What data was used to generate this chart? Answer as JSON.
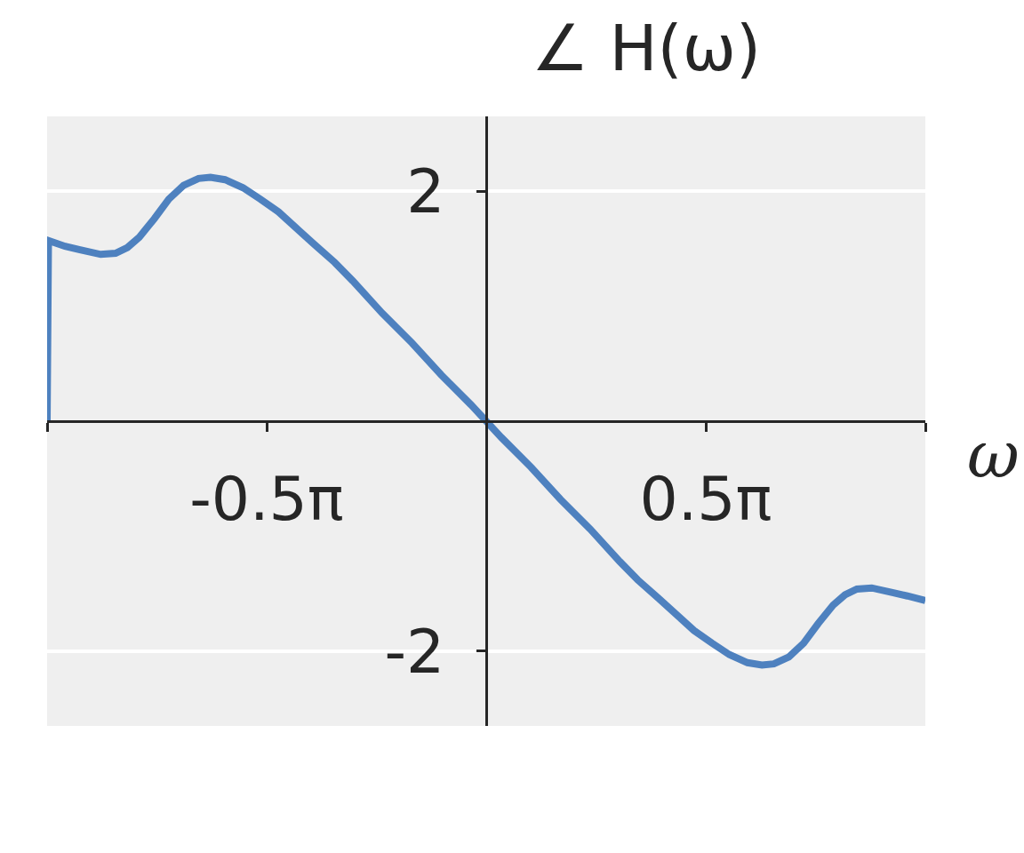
{
  "chart_data": {
    "type": "line",
    "title": "∠ H(ω)",
    "xlabel": "ω",
    "x": [
      -3.1416,
      -3.132,
      -3.013,
      -2.906,
      -2.758,
      -2.652,
      -2.567,
      -2.482,
      -2.375,
      -2.271,
      -2.165,
      -2.058,
      -1.973,
      -1.869,
      -1.74,
      -1.615,
      -1.486,
      -1.36,
      -1.232,
      -1.084,
      -0.955,
      -0.745,
      -0.531,
      -0.32,
      -0.107,
      0.0,
      0.107,
      0.32,
      0.531,
      0.745,
      0.955,
      1.084,
      1.232,
      1.36,
      1.486,
      1.615,
      1.74,
      1.869,
      1.973,
      2.058,
      2.165,
      2.271,
      2.375,
      2.482,
      2.567,
      2.652,
      2.758,
      2.906,
      3.013,
      3.1416
    ],
    "series": [
      {
        "color": "#4e81bf",
        "values": [
          0.0,
          1.57,
          1.52,
          1.49,
          1.45,
          1.46,
          1.51,
          1.6,
          1.76,
          1.93,
          2.05,
          2.11,
          2.12,
          2.1,
          2.03,
          1.93,
          1.82,
          1.68,
          1.54,
          1.38,
          1.22,
          0.94,
          0.68,
          0.4,
          0.14,
          0.0,
          -0.14,
          -0.4,
          -0.68,
          -0.94,
          -1.22,
          -1.38,
          -1.54,
          -1.68,
          -1.82,
          -1.93,
          -2.03,
          -2.1,
          -2.12,
          -2.11,
          -2.05,
          -1.93,
          -1.76,
          -1.6,
          -1.51,
          -1.46,
          -1.45,
          -1.49,
          -1.52,
          -1.56
        ]
      }
    ],
    "xlim": [
      -3.1416,
      3.1416
    ],
    "xticks": [
      {
        "value": -3.1416,
        "label": null
      },
      {
        "value": -1.5708,
        "label": "-0.5π"
      },
      {
        "value": 1.5708,
        "label": "0.5π"
      },
      {
        "value": 3.1416,
        "label": null
      }
    ],
    "ylim": [
      -2.65,
      2.65
    ],
    "yticks": [
      -2,
      2
    ],
    "grid": "y",
    "marker": "none",
    "line_style": "solid"
  }
}
